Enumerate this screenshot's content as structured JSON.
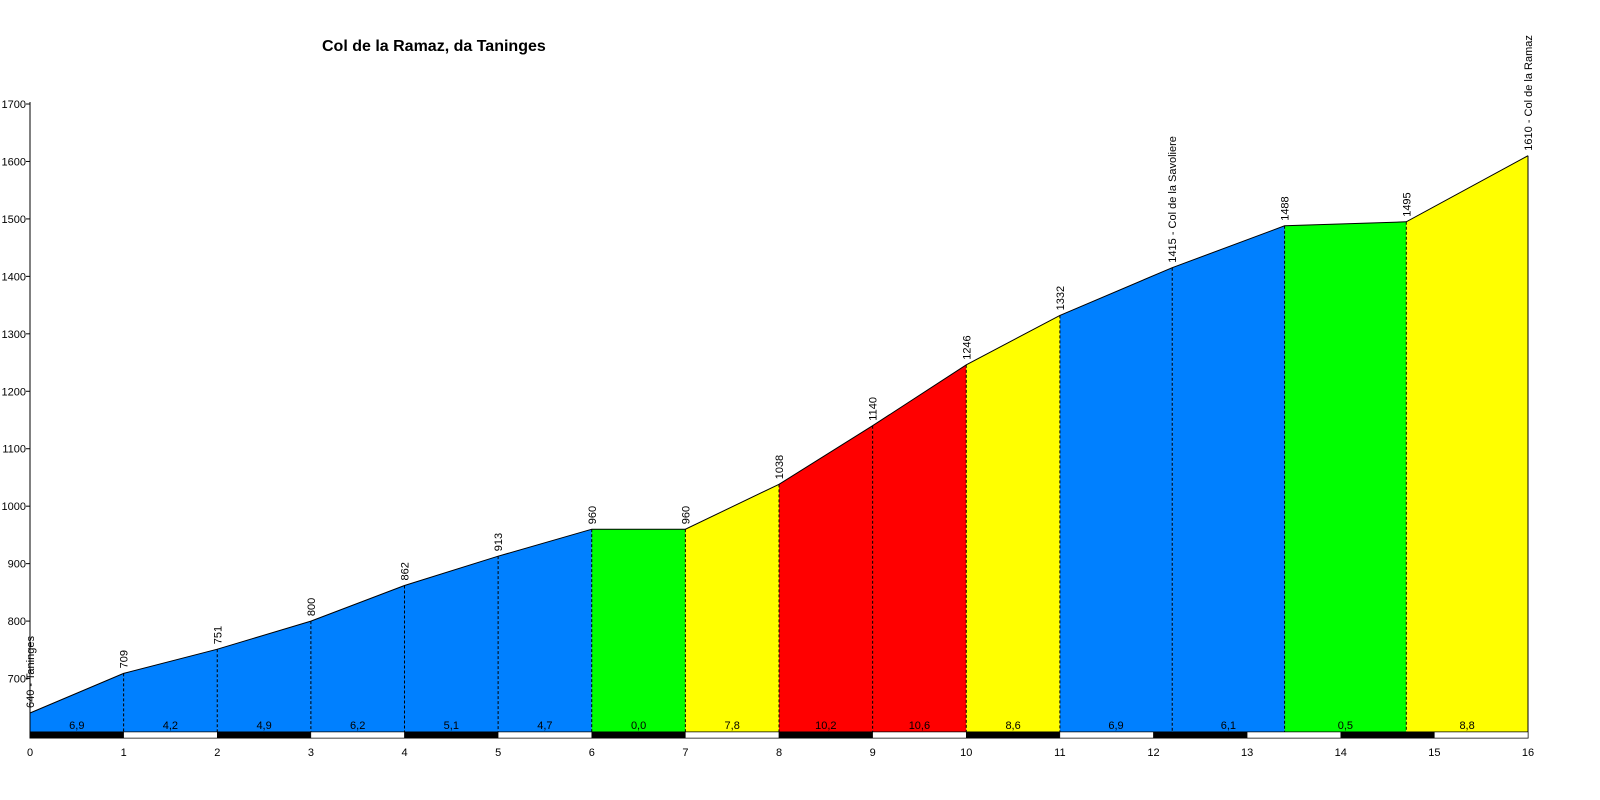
{
  "chart_data": {
    "type": "area",
    "title": "Col de la Ramaz, da Taninges",
    "xlabel": "",
    "ylabel": "",
    "xlim": [
      0,
      16
    ],
    "ylim": [
      600,
      1700
    ],
    "x_ticks": [
      "0",
      "1",
      "2",
      "3",
      "4",
      "5",
      "6",
      "7",
      "8",
      "9",
      "10",
      "11",
      "12",
      "13",
      "14",
      "15",
      "16"
    ],
    "y_ticks": [
      "700",
      "800",
      "900",
      "1000",
      "1100",
      "1200",
      "1300",
      "1400",
      "1500",
      "1600",
      "1700"
    ],
    "points": [
      {
        "x": 0,
        "y": 640,
        "label": "640 - Taninges"
      },
      {
        "x": 1,
        "y": 709,
        "label": "709"
      },
      {
        "x": 2,
        "y": 751,
        "label": "751"
      },
      {
        "x": 3,
        "y": 800,
        "label": "800"
      },
      {
        "x": 4,
        "y": 862,
        "label": "862"
      },
      {
        "x": 5,
        "y": 913,
        "label": "913"
      },
      {
        "x": 6,
        "y": 960,
        "label": "960"
      },
      {
        "x": 7,
        "y": 960,
        "label": "960"
      },
      {
        "x": 8,
        "y": 1038,
        "label": "1038"
      },
      {
        "x": 9,
        "y": 1140,
        "label": "1140"
      },
      {
        "x": 10,
        "y": 1246,
        "label": "1246"
      },
      {
        "x": 11,
        "y": 1332,
        "label": "1332"
      },
      {
        "x": 12.2,
        "y": 1415,
        "label": "1415 - Col de la Savoliere"
      },
      {
        "x": 13.4,
        "y": 1488,
        "label": "1488"
      },
      {
        "x": 14.7,
        "y": 1495,
        "label": "1495"
      },
      {
        "x": 16,
        "y": 1610,
        "label": "1610 - Col de la Ramaz"
      }
    ],
    "segments": [
      {
        "x0": 0,
        "x1": 1,
        "gradient": "6,9",
        "color": "#0080ff"
      },
      {
        "x0": 1,
        "x1": 2,
        "gradient": "4,2",
        "color": "#0080ff"
      },
      {
        "x0": 2,
        "x1": 3,
        "gradient": "4,9",
        "color": "#0080ff"
      },
      {
        "x0": 3,
        "x1": 4,
        "gradient": "6,2",
        "color": "#0080ff"
      },
      {
        "x0": 4,
        "x1": 5,
        "gradient": "5,1",
        "color": "#0080ff"
      },
      {
        "x0": 5,
        "x1": 6,
        "gradient": "4,7",
        "color": "#0080ff"
      },
      {
        "x0": 6,
        "x1": 7,
        "gradient": "0,0",
        "color": "#00ff00"
      },
      {
        "x0": 7,
        "x1": 8,
        "gradient": "7,8",
        "color": "#ffff00"
      },
      {
        "x0": 8,
        "x1": 9,
        "gradient": "10,2",
        "color": "#ff0000"
      },
      {
        "x0": 9,
        "x1": 10,
        "gradient": "10,6",
        "color": "#ff0000"
      },
      {
        "x0": 10,
        "x1": 11,
        "gradient": "8,6",
        "color": "#ffff00"
      },
      {
        "x0": 11,
        "x1": 12.2,
        "gradient": "6,9",
        "color": "#0080ff"
      },
      {
        "x0": 12.2,
        "x1": 13.4,
        "gradient": "6,1",
        "color": "#0080ff"
      },
      {
        "x0": 13.4,
        "x1": 14.7,
        "gradient": "0,5",
        "color": "#00ff00"
      },
      {
        "x0": 14.7,
        "x1": 16,
        "gradient": "8,8",
        "color": "#ffff00"
      }
    ],
    "km_bar_colors": [
      "#000000",
      "#ffffff"
    ],
    "grid": false,
    "legend": "none"
  }
}
